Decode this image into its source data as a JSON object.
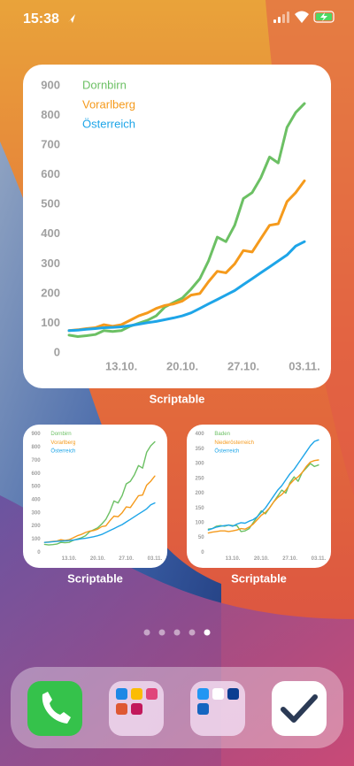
{
  "status_bar": {
    "time": "15:38"
  },
  "chart_data": [
    {
      "type": "line",
      "categories": [
        null,
        null,
        null,
        null,
        null,
        null,
        "13.10.",
        null,
        null,
        null,
        null,
        null,
        null,
        "20.10.",
        null,
        null,
        null,
        null,
        null,
        null,
        "27.10.",
        null,
        null,
        null,
        null,
        null,
        null,
        "03.11."
      ],
      "ylim": [
        0,
        900
      ],
      "yticks": [
        0,
        100,
        200,
        300,
        400,
        500,
        600,
        700,
        800,
        900
      ],
      "series": [
        {
          "name": "Dornbirn",
          "color": "#6cc064",
          "values": [
            60,
            55,
            58,
            62,
            75,
            72,
            75,
            90,
            100,
            110,
            125,
            155,
            170,
            185,
            215,
            250,
            310,
            390,
            375,
            430,
            520,
            540,
            590,
            660,
            640,
            760,
            810,
            840
          ]
        },
        {
          "name": "Vorarlberg",
          "color": "#f59a1c",
          "values": [
            75,
            78,
            82,
            85,
            95,
            90,
            95,
            110,
            125,
            135,
            150,
            160,
            165,
            175,
            195,
            200,
            240,
            275,
            270,
            300,
            345,
            340,
            385,
            430,
            435,
            510,
            540,
            580
          ]
        },
        {
          "name": "Österreich",
          "color": "#1ea5e8",
          "values": [
            75,
            77,
            80,
            82,
            85,
            86,
            88,
            92,
            97,
            102,
            106,
            112,
            118,
            125,
            135,
            150,
            165,
            180,
            195,
            210,
            230,
            250,
            270,
            290,
            310,
            330,
            360,
            375
          ]
        }
      ]
    },
    {
      "type": "line",
      "categories": [
        null,
        null,
        null,
        null,
        null,
        null,
        "13.10.",
        null,
        null,
        null,
        null,
        null,
        null,
        "20.10.",
        null,
        null,
        null,
        null,
        null,
        null,
        "27.10.",
        null,
        null,
        null,
        null,
        null,
        null,
        "03.11."
      ],
      "ylim": [
        0,
        900
      ],
      "yticks": [
        0,
        100,
        200,
        300,
        400,
        500,
        600,
        700,
        800,
        900
      ],
      "series": [
        {
          "name": "Dornbirn",
          "color": "#6cc064",
          "values": [
            60,
            55,
            58,
            62,
            75,
            72,
            75,
            90,
            100,
            110,
            125,
            155,
            170,
            185,
            215,
            250,
            310,
            390,
            375,
            430,
            520,
            540,
            590,
            660,
            640,
            760,
            810,
            840
          ]
        },
        {
          "name": "Vorarlberg",
          "color": "#f59a1c",
          "values": [
            75,
            78,
            82,
            85,
            95,
            90,
            95,
            110,
            125,
            135,
            150,
            160,
            165,
            175,
            195,
            200,
            240,
            275,
            270,
            300,
            345,
            340,
            385,
            430,
            435,
            510,
            540,
            580
          ]
        },
        {
          "name": "Österreich",
          "color": "#1ea5e8",
          "values": [
            75,
            77,
            80,
            82,
            85,
            86,
            88,
            92,
            97,
            102,
            106,
            112,
            118,
            125,
            135,
            150,
            165,
            180,
            195,
            210,
            230,
            250,
            270,
            290,
            310,
            330,
            360,
            375
          ]
        }
      ]
    },
    {
      "type": "line",
      "categories": [
        null,
        null,
        null,
        null,
        null,
        null,
        "13.10.",
        null,
        null,
        null,
        null,
        null,
        null,
        "20.10.",
        null,
        null,
        null,
        null,
        null,
        null,
        "27.10.",
        null,
        null,
        null,
        null,
        null,
        null,
        "03.11."
      ],
      "ylim": [
        0,
        400
      ],
      "yticks": [
        0,
        50,
        100,
        150,
        200,
        250,
        300,
        350,
        400
      ],
      "series": [
        {
          "name": "Baden",
          "color": "#6cc064",
          "values": [
            78,
            80,
            88,
            90,
            88,
            92,
            90,
            90,
            70,
            72,
            80,
            100,
            120,
            140,
            130,
            150,
            170,
            190,
            210,
            200,
            235,
            255,
            240,
            270,
            285,
            300,
            290,
            295
          ]
        },
        {
          "name": "Niederösterreich",
          "color": "#f59a1c",
          "values": [
            65,
            68,
            70,
            72,
            72,
            70,
            72,
            75,
            80,
            78,
            85,
            95,
            110,
            125,
            135,
            150,
            170,
            185,
            195,
            210,
            230,
            245,
            255,
            270,
            290,
            305,
            310,
            312
          ]
        },
        {
          "name": "Österreich",
          "color": "#1ea5e8",
          "values": [
            75,
            80,
            85,
            88,
            90,
            92,
            88,
            95,
            100,
            98,
            105,
            110,
            120,
            135,
            150,
            170,
            190,
            210,
            225,
            245,
            265,
            280,
            300,
            320,
            340,
            360,
            375,
            380
          ]
        }
      ]
    }
  ],
  "widgets": [
    {
      "label": "Scriptable"
    },
    {
      "label": "Scriptable"
    },
    {
      "label": "Scriptable"
    }
  ]
}
